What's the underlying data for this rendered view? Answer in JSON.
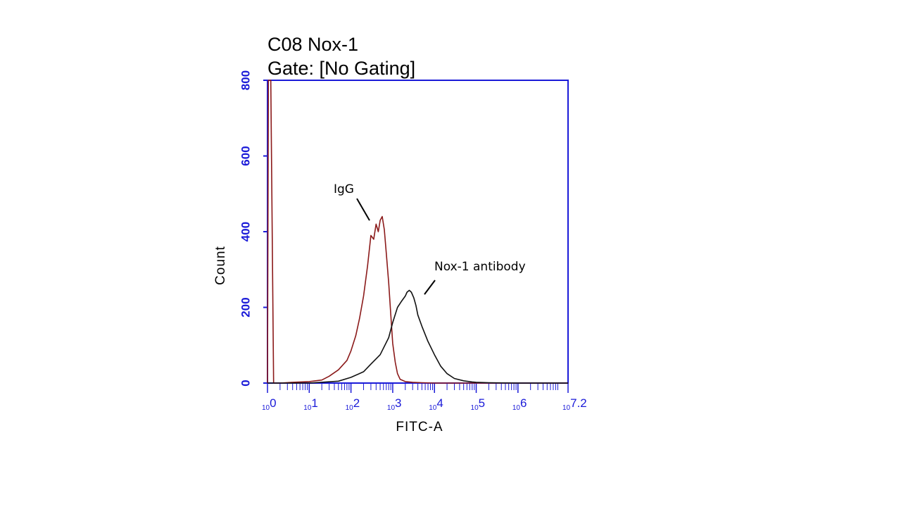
{
  "chart_data": {
    "type": "line",
    "title": "C08 Nox-1",
    "subtitle": "Gate: [No Gating]",
    "xlabel": "FITC-A",
    "ylabel": "Count",
    "x_scale": "log",
    "xlim": [
      1,
      15848931.92
    ],
    "ylim": [
      0,
      800
    ],
    "y_ticks": [
      0,
      200,
      400,
      600,
      800
    ],
    "x_ticks": [
      {
        "base": "10",
        "exp": "0",
        "value": 1
      },
      {
        "base": "10",
        "exp": "1",
        "value": 10
      },
      {
        "base": "10",
        "exp": "2",
        "value": 100
      },
      {
        "base": "10",
        "exp": "3",
        "value": 1000
      },
      {
        "base": "10",
        "exp": "4",
        "value": 10000
      },
      {
        "base": "10",
        "exp": "5",
        "value": 100000
      },
      {
        "base": "10",
        "exp": "6",
        "value": 1000000
      },
      {
        "base": "10",
        "exp": "7.2",
        "value": 15848931.92
      }
    ],
    "grid": false,
    "legend": "none",
    "colors": {
      "axis": "#1a1ad8",
      "igg": "#8b1a1a",
      "nox1": "#111111"
    },
    "series": [
      {
        "name": "IgG",
        "color": "#8b1a1a",
        "x": [
          1,
          1.05,
          1.12,
          1.2,
          1.4,
          2,
          4,
          10,
          20,
          30,
          50,
          80,
          100,
          130,
          160,
          200,
          250,
          300,
          350,
          400,
          450,
          500,
          560,
          630,
          700,
          800,
          900,
          1000,
          1150,
          1300,
          1500,
          2000,
          3000,
          5000,
          10000,
          15848931.92
        ],
        "y": [
          0,
          800,
          800,
          800,
          0,
          0,
          2,
          4,
          8,
          18,
          35,
          60,
          85,
          125,
          170,
          230,
          310,
          390,
          380,
          420,
          400,
          430,
          440,
          405,
          345,
          265,
          180,
          105,
          55,
          25,
          10,
          4,
          2,
          1,
          0,
          0
        ]
      },
      {
        "name": "Nox-1 antibody",
        "color": "#111111",
        "x": [
          1,
          10,
          50,
          100,
          200,
          300,
          500,
          800,
          1000,
          1300,
          1600,
          2000,
          2200,
          2500,
          2800,
          3200,
          3600,
          4000,
          5000,
          7000,
          10000,
          14000,
          20000,
          30000,
          50000,
          80000,
          100000,
          200000,
          1000000,
          15848931.92
        ],
        "y": [
          0,
          0,
          5,
          15,
          30,
          50,
          75,
          120,
          160,
          200,
          215,
          230,
          240,
          245,
          240,
          225,
          205,
          180,
          150,
          110,
          75,
          45,
          25,
          12,
          6,
          3,
          2,
          1,
          0,
          0
        ]
      }
    ],
    "annotations": [
      {
        "text": "IgG",
        "series": "IgG"
      },
      {
        "text": "Nox-1 antibody",
        "series": "Nox-1 antibody"
      }
    ]
  }
}
